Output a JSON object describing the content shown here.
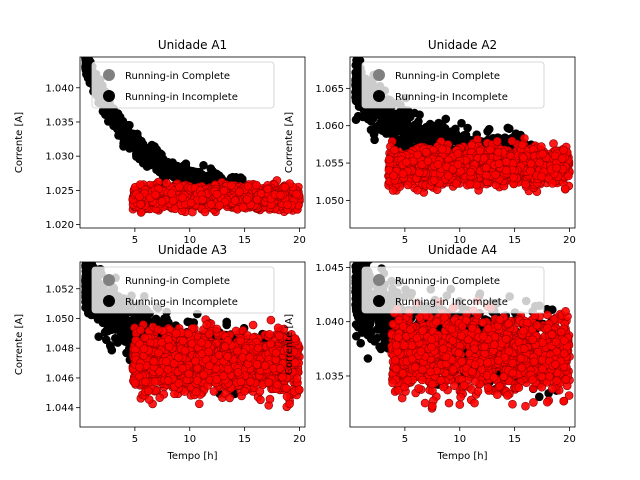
{
  "legend": {
    "position": "upper-center",
    "entries": [
      {
        "label": "Running-in Complete",
        "color": "#808080"
      },
      {
        "label": "Running-in Incomplete",
        "color": "#000000"
      }
    ]
  },
  "colors": {
    "incomplete": "#000000",
    "complete": "#ff0000",
    "complete_edge": "#8b0000"
  },
  "chart_data": [
    {
      "type": "scatter",
      "title": "Unidade A1",
      "xlabel": "",
      "ylabel": "Corrente [A]",
      "xlim": [
        0.0,
        20.5
      ],
      "ylim": [
        1.0195,
        1.0445
      ],
      "xticks": [
        5,
        10,
        15,
        20
      ],
      "yticks": [
        1.02,
        1.025,
        1.03,
        1.035,
        1.04
      ],
      "ytick_labels": [
        "1.020",
        "1.025",
        "1.030",
        "1.035",
        "1.040"
      ],
      "series": [
        {
          "name": "Running-in Incomplete",
          "x_range": [
            0.5,
            15.0
          ],
          "curve": {
            "a": 1.0245,
            "b": 0.022,
            "c": 0.22,
            "spread": 0.0012
          }
        },
        {
          "name": "Running-in Complete",
          "x_range": [
            4.8,
            20.0
          ],
          "curve": {
            "a": 1.024,
            "b": 0.0,
            "c": 0.2,
            "spread": 0.0012
          }
        }
      ]
    },
    {
      "type": "scatter",
      "title": "Unidade A2",
      "xlabel": "",
      "ylabel": "Corrente [A]",
      "xlim": [
        0.0,
        20.5
      ],
      "ylim": [
        1.0463,
        1.0692
      ],
      "xticks": [
        5,
        10,
        15,
        20
      ],
      "yticks": [
        1.05,
        1.055,
        1.06,
        1.065
      ],
      "ytick_labels": [
        "1.050",
        "1.055",
        "1.060",
        "1.065"
      ],
      "series": [
        {
          "name": "Running-in Incomplete",
          "x_range": [
            0.5,
            17.0
          ],
          "curve": {
            "a": 1.0555,
            "b": 0.011,
            "c": 0.2,
            "spread": 0.0022
          }
        },
        {
          "name": "Running-in Complete",
          "x_range": [
            3.5,
            20.0
          ],
          "curve": {
            "a": 1.0545,
            "b": 0.0,
            "c": 0.2,
            "spread": 0.0018
          }
        }
      ]
    },
    {
      "type": "scatter",
      "title": "Unidade A3",
      "xlabel": "Tempo [h]",
      "ylabel": "Corrente [A]",
      "xlim": [
        0.0,
        20.5
      ],
      "ylim": [
        1.0427,
        1.0538
      ],
      "xticks": [
        5,
        10,
        15,
        20
      ],
      "yticks": [
        1.044,
        1.046,
        1.048,
        1.05,
        1.052
      ],
      "ytick_labels": [
        "1.044",
        "1.046",
        "1.048",
        "1.050",
        "1.052"
      ],
      "series": [
        {
          "name": "Running-in Incomplete",
          "x_range": [
            0.5,
            17.0
          ],
          "curve": {
            "a": 1.047,
            "b": 0.006,
            "c": 0.2,
            "spread": 0.0014
          }
        },
        {
          "name": "Running-in Complete",
          "x_range": [
            4.8,
            20.0
          ],
          "curve": {
            "a": 1.047,
            "b": 0.0,
            "c": 0.2,
            "spread": 0.0015
          }
        }
      ]
    },
    {
      "type": "scatter",
      "title": "Unidade A4",
      "xlabel": "Tempo [h]",
      "ylabel": "Corrente [A]",
      "xlim": [
        0.0,
        20.5
      ],
      "ylim": [
        1.0303,
        1.0455
      ],
      "xticks": [
        5,
        10,
        15,
        20
      ],
      "yticks": [
        1.035,
        1.04,
        1.045
      ],
      "ytick_labels": [
        "1.035",
        "1.040",
        "1.045"
      ],
      "series": [
        {
          "name": "Running-in Incomplete",
          "x_range": [
            0.5,
            19.0
          ],
          "curve": {
            "a": 1.0375,
            "b": 0.006,
            "c": 0.2,
            "spread": 0.0026
          }
        },
        {
          "name": "Running-in Complete",
          "x_range": [
            3.8,
            20.0
          ],
          "curve": {
            "a": 1.037,
            "b": 0.0,
            "c": 0.2,
            "spread": 0.0025
          }
        }
      ]
    }
  ]
}
